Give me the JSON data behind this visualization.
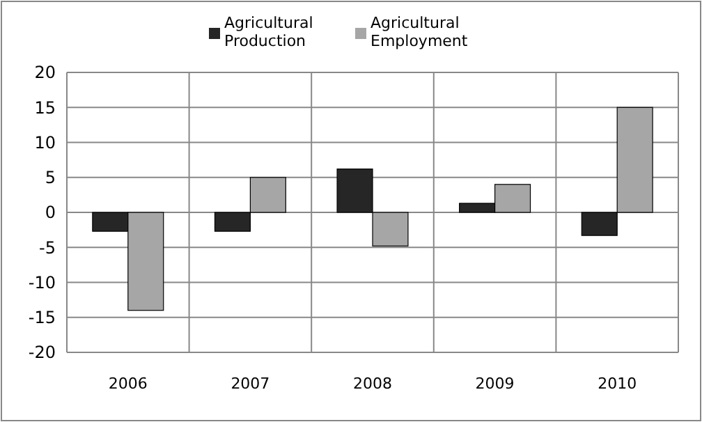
{
  "chart_data": {
    "type": "bar",
    "categories": [
      "2006",
      "2007",
      "2008",
      "2009",
      "2010"
    ],
    "series": [
      {
        "name": "Agricultural Production",
        "color": "#262626",
        "values": [
          -2.7,
          -2.7,
          6.2,
          1.3,
          -3.3
        ]
      },
      {
        "name": "Agricultural Employment",
        "color": "#a6a6a6",
        "values": [
          -14,
          5,
          -4.8,
          4,
          15
        ]
      }
    ],
    "ylim": [
      -20,
      20
    ],
    "yticks": [
      -20,
      -15,
      -10,
      -5,
      0,
      5,
      10,
      15,
      20
    ],
    "grid": true,
    "legend": "top"
  }
}
